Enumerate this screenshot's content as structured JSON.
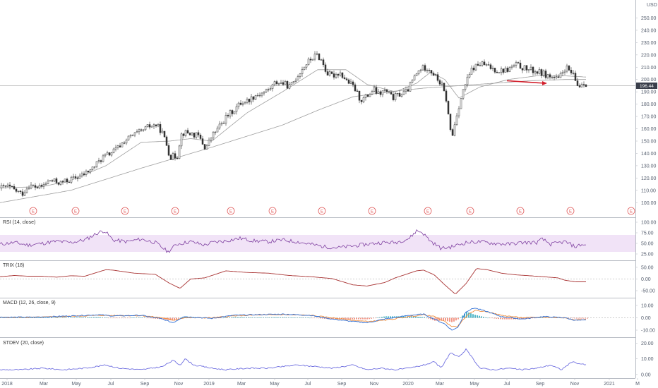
{
  "currency_label": "USD",
  "price_badge": "196.44",
  "colors": {
    "up": "#26a69a",
    "down": "#ef5350",
    "candle": "#333333",
    "ma": "#9e9e9e",
    "rsi": "#7e3fa0",
    "rsi_band": "#f1e3f7",
    "trix": "#a83232",
    "macd": "#2e6fd6",
    "signal": "#f08c3a",
    "stdev": "#6f6fe0",
    "arrow": "#d3212d",
    "earnings": "#e05a5a"
  },
  "x_axis": {
    "ticks": [
      "2018",
      "Mar",
      "May",
      "Jul",
      "Sep",
      "Nov",
      "2019",
      "Mar",
      "May",
      "Jul",
      "Sep",
      "Nov",
      "2020",
      "Mar",
      "May",
      "Jul",
      "Sep",
      "Nov",
      "2021",
      "M"
    ]
  },
  "earnings_marker": "E",
  "chart_data": [
    {
      "type": "candlestick",
      "pane": "price",
      "ylim": [
        95,
        260
      ],
      "y_ticks": [
        "250.00",
        "240.00",
        "230.00",
        "220.00",
        "210.00",
        "200.00",
        "190.00",
        "180.00",
        "170.00",
        "160.00",
        "150.00",
        "140.00",
        "130.00",
        "120.00",
        "110.00",
        "100.00"
      ],
      "last_price": 196.44,
      "anchors_close": [
        [
          0,
          112
        ],
        [
          10,
          113
        ],
        [
          20,
          110
        ],
        [
          30,
          107
        ],
        [
          40,
          114
        ],
        [
          55,
          112
        ],
        [
          70,
          118
        ],
        [
          85,
          116
        ],
        [
          100,
          119
        ],
        [
          115,
          122
        ],
        [
          130,
          128
        ],
        [
          145,
          137
        ],
        [
          155,
          140
        ],
        [
          165,
          144
        ],
        [
          175,
          150
        ],
        [
          185,
          154
        ],
        [
          200,
          158
        ],
        [
          210,
          162
        ],
        [
          220,
          163
        ],
        [
          228,
          158
        ],
        [
          234,
          149
        ],
        [
          240,
          137
        ],
        [
          250,
          138
        ],
        [
          255,
          155
        ],
        [
          260,
          157
        ],
        [
          270,
          156
        ],
        [
          280,
          154
        ],
        [
          290,
          144
        ],
        [
          300,
          155
        ],
        [
          310,
          162
        ],
        [
          320,
          170
        ],
        [
          330,
          175
        ],
        [
          340,
          181
        ],
        [
          350,
          183
        ],
        [
          360,
          187
        ],
        [
          370,
          189
        ],
        [
          380,
          192
        ],
        [
          390,
          198
        ],
        [
          400,
          197
        ],
        [
          410,
          194
        ],
        [
          420,
          203
        ],
        [
          430,
          211
        ],
        [
          440,
          217
        ],
        [
          448,
          220
        ],
        [
          455,
          215
        ],
        [
          462,
          205
        ],
        [
          470,
          203
        ],
        [
          480,
          206
        ],
        [
          490,
          199
        ],
        [
          500,
          194
        ],
        [
          510,
          183
        ],
        [
          520,
          187
        ],
        [
          528,
          192
        ],
        [
          535,
          188
        ],
        [
          545,
          191
        ],
        [
          555,
          185
        ],
        [
          565,
          188
        ],
        [
          575,
          190
        ],
        [
          585,
          201
        ],
        [
          595,
          209
        ],
        [
          605,
          210
        ],
        [
          615,
          203
        ],
        [
          625,
          195
        ],
        [
          632,
          182
        ],
        [
          636,
          160
        ],
        [
          640,
          155
        ],
        [
          646,
          172
        ],
        [
          652,
          185
        ],
        [
          658,
          196
        ],
        [
          668,
          209
        ],
        [
          680,
          213
        ],
        [
          692,
          210
        ],
        [
          705,
          207
        ],
        [
          718,
          208
        ],
        [
          730,
          212
        ],
        [
          742,
          209
        ],
        [
          755,
          207
        ],
        [
          768,
          205
        ],
        [
          775,
          203
        ],
        [
          790,
          200
        ],
        [
          800,
          210
        ],
        [
          810,
          204
        ],
        [
          818,
          194
        ],
        [
          825,
          198
        ],
        [
          831,
          196
        ]
      ],
      "ma50": [
        [
          0,
          112
        ],
        [
          60,
          113
        ],
        [
          100,
          118
        ],
        [
          150,
          130
        ],
        [
          200,
          149
        ],
        [
          240,
          150
        ],
        [
          270,
          152
        ],
        [
          300,
          150
        ],
        [
          350,
          173
        ],
        [
          400,
          190
        ],
        [
          450,
          208
        ],
        [
          490,
          208
        ],
        [
          520,
          196
        ],
        [
          560,
          190
        ],
        [
          590,
          197
        ],
        [
          610,
          206
        ],
        [
          630,
          200
        ],
        [
          650,
          185
        ],
        [
          680,
          194
        ],
        [
          720,
          200
        ],
        [
          760,
          203
        ],
        [
          800,
          203
        ],
        [
          831,
          202
        ]
      ],
      "ma200": [
        [
          0,
          100
        ],
        [
          100,
          110
        ],
        [
          200,
          128
        ],
        [
          300,
          145
        ],
        [
          400,
          163
        ],
        [
          450,
          175
        ],
        [
          500,
          186
        ],
        [
          550,
          190
        ],
        [
          600,
          193
        ],
        [
          650,
          195
        ],
        [
          700,
          197
        ],
        [
          750,
          199
        ],
        [
          800,
          200
        ],
        [
          831,
          200
        ]
      ],
      "annotation_arrow": {
        "from": [
          718,
          199
        ],
        "to": [
          775,
          197
        ]
      },
      "earnings_at": [
        47,
        107,
        177,
        248,
        327,
        386,
        456,
        527,
        606,
        666,
        737,
        808,
        894
      ]
    },
    {
      "type": "line",
      "pane": "rsi",
      "title": "RSI (14, close)",
      "ylim": [
        15,
        105
      ],
      "y_ticks": [
        "100.00",
        "75.00",
        "50.00",
        "25.00"
      ],
      "band": [
        30,
        70
      ],
      "anchors": [
        [
          0,
          48
        ],
        [
          20,
          52
        ],
        [
          40,
          46
        ],
        [
          60,
          50
        ],
        [
          80,
          55
        ],
        [
          100,
          52
        ],
        [
          120,
          58
        ],
        [
          140,
          76
        ],
        [
          148,
          80
        ],
        [
          160,
          58
        ],
        [
          180,
          54
        ],
        [
          200,
          60
        ],
        [
          220,
          52
        ],
        [
          230,
          40
        ],
        [
          238,
          30
        ],
        [
          250,
          48
        ],
        [
          270,
          54
        ],
        [
          290,
          46
        ],
        [
          300,
          52
        ],
        [
          320,
          56
        ],
        [
          340,
          62
        ],
        [
          360,
          56
        ],
        [
          380,
          54
        ],
        [
          400,
          58
        ],
        [
          420,
          54
        ],
        [
          440,
          48
        ],
        [
          460,
          42
        ],
        [
          480,
          40
        ],
        [
          500,
          44
        ],
        [
          520,
          48
        ],
        [
          540,
          52
        ],
        [
          560,
          52
        ],
        [
          580,
          62
        ],
        [
          590,
          80
        ],
        [
          598,
          76
        ],
        [
          610,
          55
        ],
        [
          625,
          38
        ],
        [
          640,
          42
        ],
        [
          660,
          52
        ],
        [
          680,
          54
        ],
        [
          700,
          50
        ],
        [
          720,
          48
        ],
        [
          740,
          52
        ],
        [
          760,
          52
        ],
        [
          768,
          60
        ],
        [
          780,
          48
        ],
        [
          800,
          54
        ],
        [
          815,
          42
        ],
        [
          825,
          48
        ],
        [
          831,
          44
        ]
      ]
    },
    {
      "type": "line",
      "pane": "trix",
      "title": "TRIX (18)",
      "ylim": [
        -68,
        68
      ],
      "y_ticks": [
        "50.00",
        "0.00",
        "-50.00"
      ],
      "anchors": [
        [
          0,
          10
        ],
        [
          20,
          15
        ],
        [
          40,
          12
        ],
        [
          60,
          12
        ],
        [
          80,
          8
        ],
        [
          100,
          14
        ],
        [
          120,
          12
        ],
        [
          150,
          40
        ],
        [
          160,
          38
        ],
        [
          190,
          25
        ],
        [
          220,
          20
        ],
        [
          240,
          -18
        ],
        [
          255,
          -40
        ],
        [
          270,
          0
        ],
        [
          290,
          5
        ],
        [
          320,
          35
        ],
        [
          350,
          28
        ],
        [
          380,
          25
        ],
        [
          410,
          15
        ],
        [
          440,
          10
        ],
        [
          470,
          2
        ],
        [
          500,
          -25
        ],
        [
          520,
          -30
        ],
        [
          545,
          -15
        ],
        [
          560,
          5
        ],
        [
          590,
          35
        ],
        [
          600,
          38
        ],
        [
          615,
          18
        ],
        [
          630,
          -25
        ],
        [
          645,
          -65
        ],
        [
          660,
          -20
        ],
        [
          675,
          45
        ],
        [
          690,
          40
        ],
        [
          710,
          25
        ],
        [
          730,
          18
        ],
        [
          760,
          12
        ],
        [
          790,
          5
        ],
        [
          800,
          -5
        ],
        [
          815,
          -12
        ],
        [
          831,
          -12
        ]
      ]
    },
    {
      "type": "line",
      "pane": "macd",
      "title": "MACD (12, 26, close, 9)",
      "ylim": [
        -14,
        14
      ],
      "y_ticks": [
        "10.00",
        "0.00",
        "-10.00"
      ],
      "anchors_macd": [
        [
          0,
          0.5
        ],
        [
          50,
          0.5
        ],
        [
          100,
          1.5
        ],
        [
          140,
          2.5
        ],
        [
          160,
          1.5
        ],
        [
          200,
          2
        ],
        [
          230,
          -1
        ],
        [
          245,
          -4
        ],
        [
          260,
          1
        ],
        [
          300,
          -0.5
        ],
        [
          330,
          2
        ],
        [
          360,
          2.5
        ],
        [
          400,
          3
        ],
        [
          440,
          2
        ],
        [
          470,
          -1
        ],
        [
          500,
          -3
        ],
        [
          520,
          -4
        ],
        [
          545,
          -1
        ],
        [
          580,
          2
        ],
        [
          600,
          3
        ],
        [
          615,
          -1
        ],
        [
          630,
          -5
        ],
        [
          640,
          -10
        ],
        [
          648,
          -8
        ],
        [
          660,
          5
        ],
        [
          672,
          8
        ],
        [
          690,
          5
        ],
        [
          710,
          1
        ],
        [
          740,
          -1
        ],
        [
          770,
          1
        ],
        [
          800,
          0
        ],
        [
          815,
          -2
        ],
        [
          831,
          -2
        ]
      ],
      "anchors_signal": [
        [
          0,
          0.3
        ],
        [
          50,
          0.4
        ],
        [
          100,
          1.2
        ],
        [
          140,
          2
        ],
        [
          160,
          1.8
        ],
        [
          200,
          1.8
        ],
        [
          230,
          0
        ],
        [
          245,
          -2
        ],
        [
          260,
          0
        ],
        [
          300,
          0
        ],
        [
          330,
          1.5
        ],
        [
          360,
          2.2
        ],
        [
          400,
          2.6
        ],
        [
          440,
          2
        ],
        [
          470,
          0
        ],
        [
          500,
          -2
        ],
        [
          520,
          -3
        ],
        [
          545,
          -2
        ],
        [
          580,
          1
        ],
        [
          600,
          2.5
        ],
        [
          615,
          1
        ],
        [
          630,
          -3
        ],
        [
          640,
          -7
        ],
        [
          648,
          -7
        ],
        [
          660,
          1
        ],
        [
          672,
          6
        ],
        [
          690,
          5
        ],
        [
          710,
          2
        ],
        [
          740,
          0
        ],
        [
          770,
          0.5
        ],
        [
          800,
          0
        ],
        [
          815,
          -1.5
        ],
        [
          831,
          -1.5
        ]
      ]
    },
    {
      "type": "line",
      "pane": "stdev",
      "title": "STDEV (20, close)",
      "ylim": [
        -1,
        22
      ],
      "y_ticks": [
        "20.00",
        "10.00",
        "0.00"
      ],
      "anchors": [
        [
          0,
          3
        ],
        [
          30,
          3
        ],
        [
          60,
          4
        ],
        [
          90,
          3
        ],
        [
          120,
          4
        ],
        [
          150,
          6
        ],
        [
          170,
          4
        ],
        [
          200,
          3
        ],
        [
          230,
          5
        ],
        [
          245,
          9
        ],
        [
          255,
          6
        ],
        [
          262,
          10
        ],
        [
          275,
          6
        ],
        [
          300,
          4
        ],
        [
          320,
          3
        ],
        [
          350,
          4
        ],
        [
          380,
          4
        ],
        [
          400,
          5
        ],
        [
          420,
          6
        ],
        [
          450,
          5
        ],
        [
          470,
          4
        ],
        [
          500,
          6
        ],
        [
          520,
          3
        ],
        [
          540,
          4
        ],
        [
          560,
          3
        ],
        [
          580,
          4
        ],
        [
          600,
          6
        ],
        [
          615,
          8
        ],
        [
          625,
          4
        ],
        [
          638,
          14
        ],
        [
          650,
          11
        ],
        [
          660,
          16
        ],
        [
          670,
          10
        ],
        [
          680,
          4
        ],
        [
          700,
          3
        ],
        [
          720,
          4
        ],
        [
          740,
          3
        ],
        [
          760,
          4
        ],
        [
          780,
          6
        ],
        [
          795,
          3
        ],
        [
          810,
          8
        ],
        [
          820,
          7
        ],
        [
          831,
          6
        ]
      ]
    }
  ]
}
